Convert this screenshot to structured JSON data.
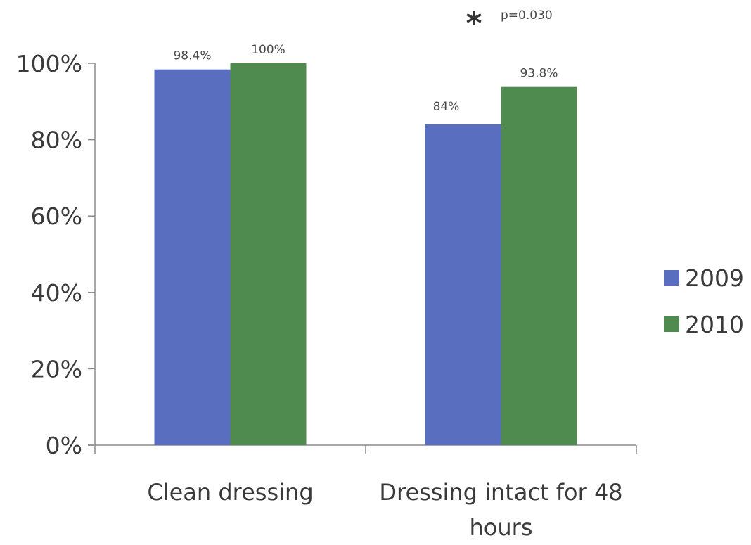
{
  "chart_data": {
    "type": "bar",
    "categories": [
      [
        "Clean dressing"
      ],
      [
        "Dressing intact for 48",
        "hours"
      ]
    ],
    "series": [
      {
        "name": "2009",
        "values": [
          98.4,
          84
        ],
        "labels": [
          "98.4%",
          "84%"
        ],
        "color": "#5a6ebf"
      },
      {
        "name": "2010",
        "values": [
          100,
          93.8
        ],
        "labels": [
          "100%",
          "93.8%"
        ],
        "color": "#4f8a4f"
      }
    ],
    "ylim": [
      0,
      100
    ],
    "yticks": [
      "0%",
      "20%",
      "40%",
      "60%",
      "80%",
      "100%"
    ],
    "legend_position": "right",
    "annotation": {
      "symbol": "*",
      "text": "p=0.030"
    },
    "title": "",
    "xlabel": "",
    "ylabel": ""
  }
}
